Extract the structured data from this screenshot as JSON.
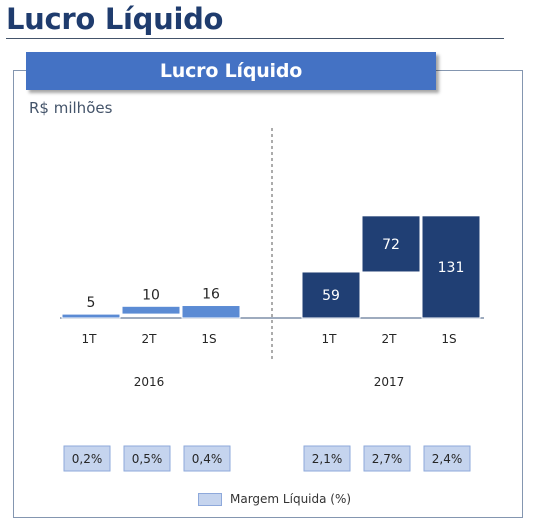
{
  "header": {
    "title": "Lucro Líquido"
  },
  "chart_data": {
    "type": "bar",
    "title": "Lucro Líquido",
    "unit_label": "R$ milhões",
    "groups": [
      {
        "name": "2016",
        "categories": [
          "1T",
          "2T",
          "1S"
        ],
        "values": [
          5,
          10,
          16
        ],
        "margins": [
          "0,2%",
          "0,5%",
          "0,4%"
        ],
        "color": "#5b8bd4"
      },
      {
        "name": "2017",
        "categories": [
          "1T",
          "2T",
          "1S"
        ],
        "values": [
          59,
          72,
          131
        ],
        "margins": [
          "2,1%",
          "2,7%",
          "2,4%"
        ],
        "color": "#203f74"
      }
    ],
    "layout_style": "waterfall",
    "legend": {
      "label": "Margem Líquida  (%)",
      "position": "bottom"
    }
  }
}
